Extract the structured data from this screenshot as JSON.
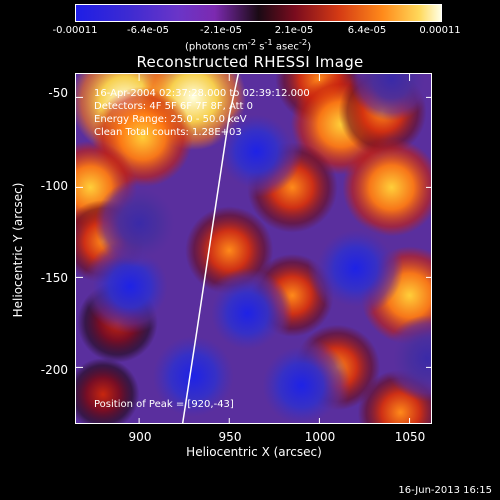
{
  "colorbar": {
    "ticks": [
      "-0.00011",
      "-6.4e-05",
      "-2.1e-05",
      "2.1e-05",
      "6.4e-05",
      "0.00011"
    ],
    "units_prefix": "(photons cm",
    "units_exp1": "-2",
    "units_mid": " s",
    "units_exp2": "-1",
    "units_mid2": " asec",
    "units_exp3": "-2",
    "units_suffix": ")"
  },
  "info": {
    "line1": "16-Apr-2004 02:37:28.000 to 02:39:12.000",
    "line2": "Detectors: 4F 5F 6F 7F 8F, Att 0",
    "line3": "Energy Range: 25.0 - 50.0 keV",
    "line4": "Clean    Total counts: 1.28E+03",
    "peak": "Position of Peak = [920,-43]"
  },
  "timestamp": "16-Jun-2013 16:15",
  "colors": {
    "background": "#000000",
    "limb_line": "#ffffff",
    "axes": "#ffffff"
  },
  "chart_data": {
    "type": "heatmap",
    "title": "Reconstructed RHESSI Image",
    "xlabel": "Heliocentric X (arcsec)",
    "ylabel": "Heliocentric Y (arcsec)",
    "xlim": [
      865,
      1063
    ],
    "ylim": [
      -232,
      -37
    ],
    "xticks": [
      900,
      950,
      1000,
      1050
    ],
    "yticks": [
      -50,
      -100,
      -150,
      -200
    ],
    "colorbar_range": [
      -0.00011,
      0.00011
    ],
    "colormap": "blue-purple-black-red-yellow-white",
    "peak_position": [
      920,
      -43
    ],
    "solar_limb": [
      [
        924,
        -232
      ],
      [
        932,
        -180
      ],
      [
        941,
        -120
      ],
      [
        950,
        -60
      ],
      [
        955,
        -37
      ]
    ],
    "blobs": [
      {
        "x": 892,
        "y": -52,
        "v": 1.0
      },
      {
        "x": 930,
        "y": -50,
        "v": 0.95
      },
      {
        "x": 902,
        "y": -72,
        "v": 0.85
      },
      {
        "x": 873,
        "y": -100,
        "v": 0.7
      },
      {
        "x": 880,
        "y": -130,
        "v": 0.5
      },
      {
        "x": 888,
        "y": -175,
        "v": 0.45
      },
      {
        "x": 1000,
        "y": -40,
        "v": 0.6
      },
      {
        "x": 1012,
        "y": -65,
        "v": 0.85
      },
      {
        "x": 1035,
        "y": -58,
        "v": 0.6
      },
      {
        "x": 985,
        "y": -100,
        "v": 0.65
      },
      {
        "x": 1040,
        "y": -100,
        "v": 0.8
      },
      {
        "x": 950,
        "y": -135,
        "v": 0.6
      },
      {
        "x": 1050,
        "y": -160,
        "v": 0.8
      },
      {
        "x": 985,
        "y": -160,
        "v": 0.5
      },
      {
        "x": 1010,
        "y": -200,
        "v": 0.55
      },
      {
        "x": 880,
        "y": -215,
        "v": 0.3
      },
      {
        "x": 1045,
        "y": -225,
        "v": 0.55
      },
      {
        "x": 895,
        "y": -155,
        "v": -0.6
      },
      {
        "x": 930,
        "y": -205,
        "v": -0.8
      },
      {
        "x": 990,
        "y": -210,
        "v": -0.7
      },
      {
        "x": 965,
        "y": -80,
        "v": -0.55
      },
      {
        "x": 1020,
        "y": -145,
        "v": -0.65
      },
      {
        "x": 900,
        "y": -120,
        "v": -0.45
      },
      {
        "x": 960,
        "y": -170,
        "v": -0.5
      },
      {
        "x": 1060,
        "y": -195,
        "v": -0.4
      },
      {
        "x": 1040,
        "y": -40,
        "v": -0.3
      }
    ]
  }
}
